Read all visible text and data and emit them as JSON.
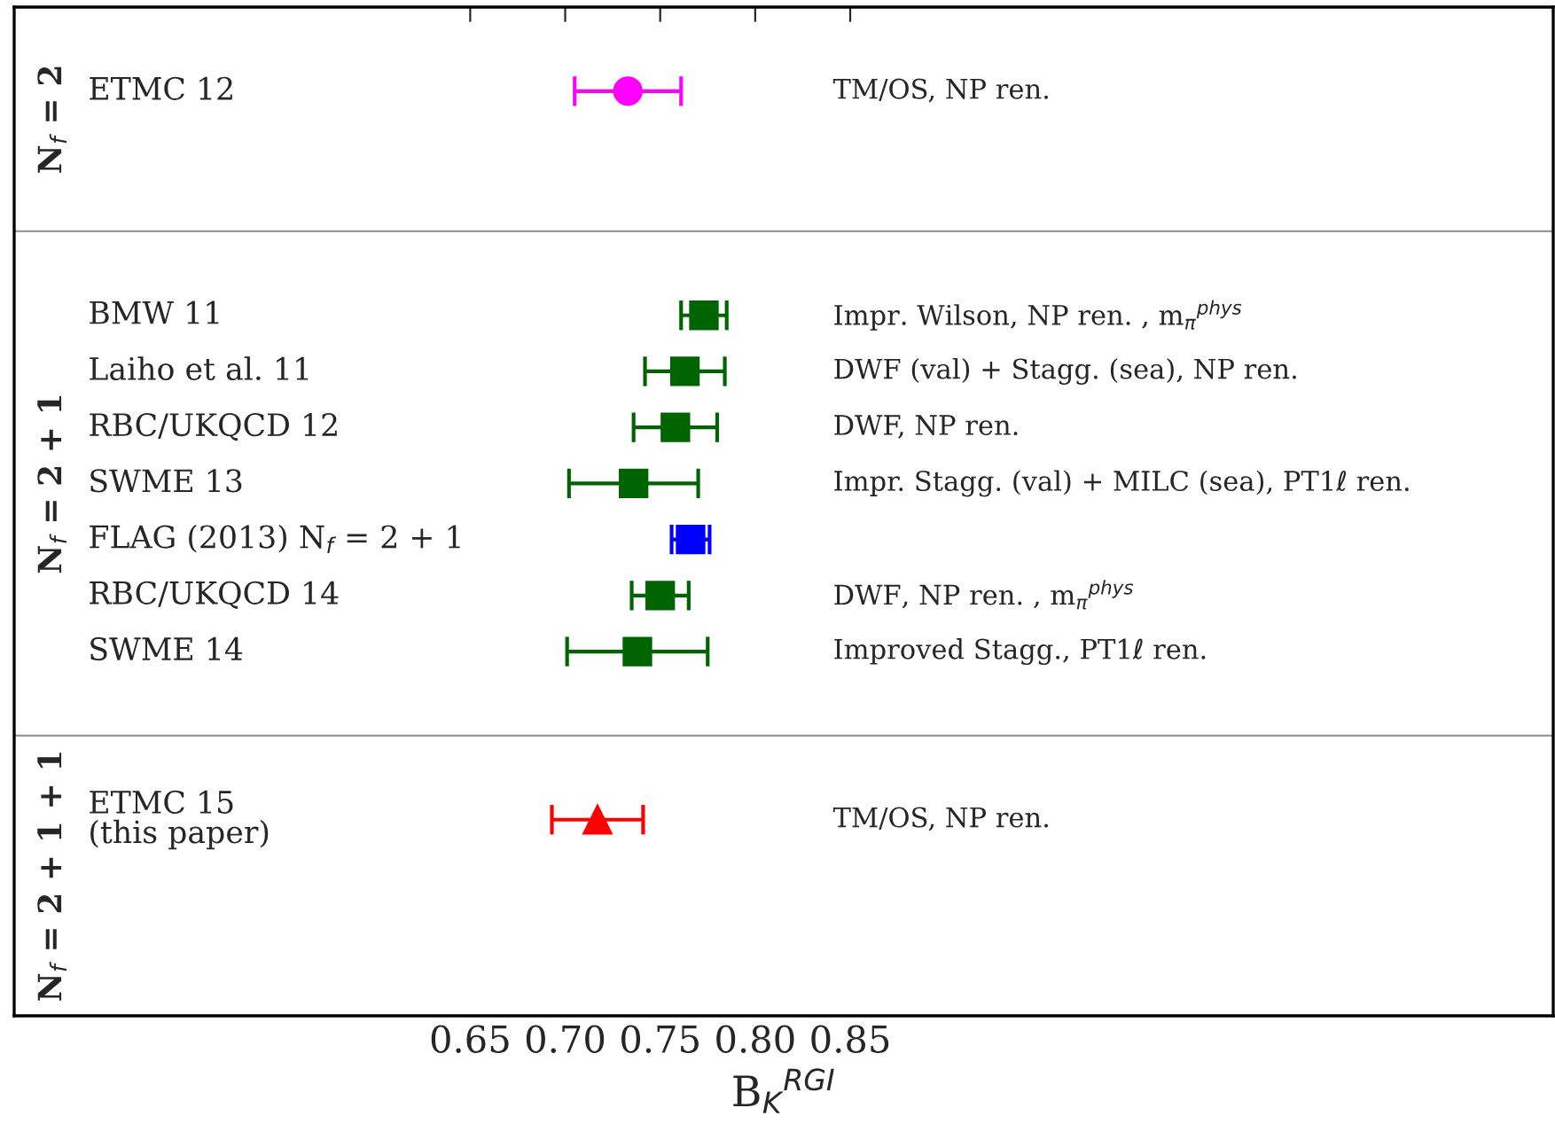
{
  "chart_data": {
    "type": "scatter",
    "orientation": "horizontal",
    "categories": [
      null,
      "ETMC 12",
      null,
      null,
      null,
      "BMW 11",
      "Laiho et al. 11",
      "RBC/UKQCD 12",
      "SWME 13",
      "FLAG (2013) N$_{f}$ = 2 + 1",
      "RBC/UKQCD 14",
      "SWME 14",
      null,
      null,
      "ETMC 15\n(this paper)",
      null,
      null,
      null
    ],
    "series": [
      {
        "color": "#ff00ff",
        "marker": "circle",
        "values": [
          null,
          0.733,
          null,
          null,
          null,
          null,
          null,
          null,
          null,
          null,
          null,
          null,
          null,
          null,
          null,
          null,
          null,
          null
        ],
        "errors": [
          null,
          0.028,
          null,
          null,
          null,
          null,
          null,
          null,
          null,
          null,
          null,
          null,
          null,
          null,
          null,
          null,
          null,
          null
        ]
      },
      {
        "color": "#006400",
        "marker": "square",
        "values": [
          null,
          null,
          null,
          null,
          null,
          0.773,
          0.763,
          0.758,
          0.736,
          null,
          0.75,
          0.738,
          null,
          null,
          null,
          null,
          null,
          null
        ],
        "errors": [
          null,
          null,
          null,
          null,
          null,
          0.012,
          0.021,
          0.022,
          0.034,
          null,
          0.015,
          0.037,
          null,
          null,
          null,
          null,
          null,
          null
        ]
      },
      {
        "color": "#0000ff",
        "marker": "square",
        "values": [
          null,
          null,
          null,
          null,
          null,
          null,
          null,
          null,
          null,
          0.766,
          null,
          null,
          null,
          null,
          null,
          null,
          null,
          null
        ],
        "errors": [
          null,
          null,
          null,
          null,
          null,
          null,
          null,
          null,
          null,
          0.01,
          null,
          null,
          null,
          null,
          null,
          null,
          null,
          null
        ]
      },
      {
        "color": "#ff0000",
        "marker": "triangle",
        "values": [
          null,
          null,
          null,
          null,
          null,
          null,
          null,
          null,
          null,
          null,
          null,
          null,
          null,
          null,
          0.717,
          null,
          null,
          null
        ],
        "errors": [
          null,
          null,
          null,
          null,
          null,
          null,
          null,
          null,
          null,
          null,
          null,
          null,
          null,
          null,
          0.024,
          null,
          null,
          null
        ]
      }
    ],
    "xlim": [
      0.41,
      1.22
    ],
    "xticks": [
      {
        "value": 0.65,
        "label": "0.65"
      },
      {
        "value": 0.7,
        "label": "0.70"
      },
      {
        "value": 0.75,
        "label": "0.75"
      },
      {
        "value": 0.8,
        "label": "0.80"
      },
      {
        "value": 0.85,
        "label": "0.85"
      }
    ],
    "xlabel": "B$_{K}$$^{RGI}$",
    "y2_categories": [
      null,
      "TM/OS, NP ren.",
      null,
      null,
      null,
      "Impr. Wilson, NP ren. , m$_{π}$$^{phys}$",
      "DWF (val) + Stagg. (sea), NP ren.",
      "DWF, NP ren.",
      "Impr. Stagg. (val) + MILC (sea), PT1ℓ ren.",
      null,
      "DWF, NP ren. , m$_{π}$$^{phys}$",
      "Improved Stagg., PT1ℓ ren.",
      null,
      null,
      "TM/OS, NP ren.",
      null,
      null,
      null
    ],
    "annotations": [
      "N$_{f}$ = 2",
      "N$_{f}$ = 2 + 1",
      "N$_{f}$ = 2 + 1 + 1"
    ],
    "grid": false,
    "legend": false,
    "tick_labels": "x"
  }
}
